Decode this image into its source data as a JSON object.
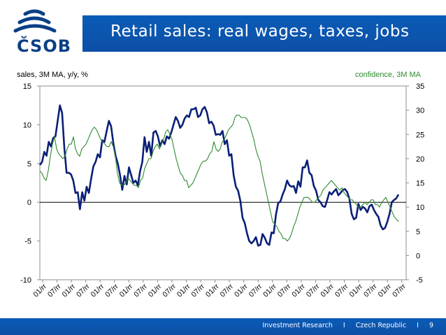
{
  "header": {
    "title": "Retail sales: real wages, taxes, jobs",
    "logo_text": "ČSOB",
    "logo_icon": "csob-wave-logo-icon"
  },
  "footer": {
    "section": "Investment Research",
    "sep": "I",
    "country": "Czech Republic",
    "page": "9"
  },
  "colors": {
    "brand": "#0a5cb8",
    "sales": "#0a1f78",
    "confidence": "#2e8b2e"
  },
  "chart_data": {
    "type": "line",
    "ylabel": "sales, 3M MA, y/y, %",
    "y2label": "confidence, 3M MA",
    "ylim": [
      -10,
      15
    ],
    "y2lim": [
      -5,
      35
    ],
    "yticks": [
      -10,
      -5,
      0,
      5,
      10,
      15
    ],
    "y2ticks": [
      -5,
      0,
      5,
      10,
      15,
      20,
      25,
      30,
      35
    ],
    "xticklabels": [
      "01/rr",
      "07/rr",
      "01/rr",
      "07/rr",
      "01/rr",
      "07/rr",
      "01/rr",
      "07/rr",
      "01/rr",
      "07/rr",
      "01/rr",
      "07/rr",
      "01/rr",
      "07/rr",
      "01/rr",
      "07/rr",
      "01/rr",
      "07/rr",
      "01/rr",
      "07/rr",
      "01/rr",
      "07/rr",
      "01/rr",
      "07/rr",
      "01/rr",
      "07/rr"
    ],
    "grid": false,
    "series": [
      {
        "axis": "left",
        "values": [
          4.8,
          5.2,
          6.5,
          6.0,
          7.8,
          7.2,
          8.3,
          8.5,
          10.5,
          12.5,
          11.5,
          7.0,
          3.8,
          3.8,
          3.6,
          2.8,
          1.2,
          1.3,
          -0.9,
          1.3,
          0.2,
          2.0,
          1.2,
          3.0,
          4.6,
          5.2,
          6.2,
          5.8,
          8.0,
          7.8,
          9.2,
          10.5,
          9.8,
          7.6,
          6.0,
          5.0,
          3.5,
          1.6,
          3.4,
          2.3,
          4.5,
          3.5,
          2.5,
          2.8,
          2.2,
          4.0,
          5.2,
          8.4,
          6.5,
          7.8,
          6.0,
          9.0,
          9.2,
          8.5,
          7.2,
          8.0,
          7.5,
          8.5,
          8.2,
          9.0,
          10.0,
          11.0,
          10.5,
          9.6,
          10.0,
          10.8,
          11.2,
          11.0,
          12.0,
          12.0,
          12.2,
          11.0,
          11.2,
          12.0,
          12.3,
          11.6,
          10.2,
          10.4,
          9.9,
          8.7,
          8.8,
          8.7,
          9.2,
          7.5,
          8.0,
          6.0,
          6.2,
          3.5,
          2.0,
          1.5,
          0.2,
          -2.0,
          -2.7,
          -4.0,
          -5.0,
          -5.3,
          -5.0,
          -4.5,
          -5.6,
          -5.5,
          -4.1,
          -4.6,
          -5.3,
          -5.5,
          -3.9,
          -4.0,
          -1.6,
          -0.1,
          0.1,
          1.0,
          1.7,
          2.8,
          2.2,
          2.0,
          2.1,
          1.2,
          2.7,
          2.0,
          4.5,
          4.5,
          5.4,
          3.8,
          3.5,
          2.1,
          1.5,
          0.3,
          0.0,
          -0.5,
          -0.6,
          0.3,
          1.3,
          1.0,
          1.4,
          1.7,
          0.9,
          1.2,
          1.6,
          1.7,
          1.3,
          0.4,
          -1.5,
          -2.2,
          -2.0,
          -0.2,
          -1.0,
          -0.6,
          -0.8,
          -1.3,
          -0.5,
          -0.3,
          -1.0,
          -1.5,
          -1.9,
          -3.0,
          -3.5,
          -3.3,
          -2.5,
          -1.5,
          0.0,
          0.3,
          0.5,
          1.0
        ]
      },
      {
        "axis": "right",
        "values": [
          17.5,
          17.0,
          16.0,
          15.5,
          17.5,
          20.5,
          23.0,
          24.5,
          22.0,
          21.0,
          20.5,
          20.0,
          20.5,
          22.0,
          23.0,
          23.0,
          24.5,
          22.0,
          21.0,
          20.5,
          22.0,
          22.5,
          23.0,
          24.0,
          25.0,
          26.0,
          26.5,
          26.0,
          25.0,
          24.0,
          23.5,
          23.0,
          22.5,
          22.5,
          23.5,
          22.5,
          20.5,
          17.0,
          15.0,
          14.5,
          14.5,
          15.0,
          16.0,
          15.5,
          15.0,
          14.5,
          14.5,
          14.0,
          15.5,
          16.0,
          18.0,
          19.0,
          20.0,
          20.0,
          21.5,
          22.5,
          23.0,
          22.0,
          23.0,
          24.0,
          25.5,
          26.0,
          25.0,
          24.0,
          22.0,
          20.0,
          18.5,
          17.0,
          16.5,
          15.5,
          15.5,
          14.0,
          14.5,
          15.0,
          16.0,
          17.0,
          18.0,
          19.0,
          19.5,
          19.5,
          20.0,
          21.0,
          21.5,
          23.5,
          22.0,
          21.5,
          22.0,
          23.5,
          24.0,
          25.0,
          26.0,
          26.5,
          27.0,
          28.5,
          29.0,
          29.0,
          28.5,
          28.5,
          28.5,
          28.0,
          27.0,
          25.5,
          24.0,
          22.0,
          20.5,
          19.5,
          17.0,
          15.0,
          13.0,
          11.0,
          9.0,
          7.0,
          6.5,
          6.0,
          5.0,
          4.5,
          3.5,
          3.5,
          3.0,
          3.5,
          4.5,
          6.0,
          7.0,
          8.5,
          10.0,
          11.0,
          12.0,
          12.0,
          12.0,
          11.5,
          11.0,
          11.0,
          11.5,
          12.0,
          12.5,
          13.5,
          14.0,
          14.5,
          15.0,
          15.5,
          15.0,
          14.5,
          14.0,
          13.5,
          14.0,
          13.0,
          12.5,
          12.0,
          11.5,
          11.5,
          11.0,
          10.5,
          10.0,
          10.0,
          10.5,
          11.0,
          10.5,
          11.0,
          11.5,
          11.5,
          10.5,
          10.5,
          10.0,
          11.0,
          11.5,
          12.0,
          11.0,
          10.0,
          9.0,
          8.0,
          7.5,
          7.0
        ]
      }
    ]
  }
}
